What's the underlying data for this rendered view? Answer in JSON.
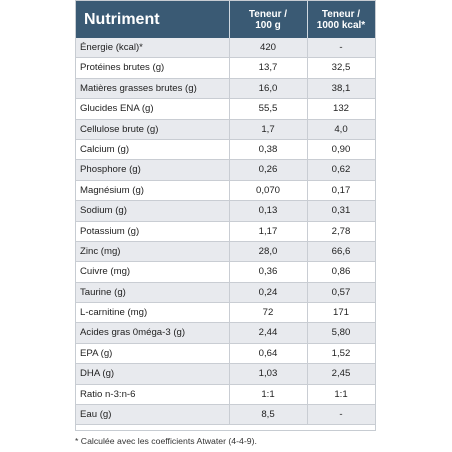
{
  "table": {
    "header": {
      "nutrient_label": "Nutriment",
      "per_100g_label": "Teneur /\n100 g",
      "per_1000kcal_label": "Teneur /\n1000 kcal*"
    },
    "rows": [
      {
        "name": "Énergie (kcal)*",
        "per_100g": "420",
        "per_1000kcal": "-"
      },
      {
        "name": "Protéines brutes (g)",
        "per_100g": "13,7",
        "per_1000kcal": "32,5"
      },
      {
        "name": "Matières grasses brutes (g)",
        "per_100g": "16,0",
        "per_1000kcal": "38,1"
      },
      {
        "name": "Glucides ENA (g)",
        "per_100g": "55,5",
        "per_1000kcal": "132"
      },
      {
        "name": "Cellulose brute (g)",
        "per_100g": "1,7",
        "per_1000kcal": "4,0"
      },
      {
        "name": "Calcium (g)",
        "per_100g": "0,38",
        "per_1000kcal": "0,90"
      },
      {
        "name": "Phosphore (g)",
        "per_100g": "0,26",
        "per_1000kcal": "0,62"
      },
      {
        "name": "Magnésium (g)",
        "per_100g": "0,070",
        "per_1000kcal": "0,17"
      },
      {
        "name": "Sodium (g)",
        "per_100g": "0,13",
        "per_1000kcal": "0,31"
      },
      {
        "name": "Potassium (g)",
        "per_100g": "1,17",
        "per_1000kcal": "2,78"
      },
      {
        "name": "Zinc (mg)",
        "per_100g": "28,0",
        "per_1000kcal": "66,6"
      },
      {
        "name": "Cuivre (mg)",
        "per_100g": "0,36",
        "per_1000kcal": "0,86"
      },
      {
        "name": "Taurine (g)",
        "per_100g": "0,24",
        "per_1000kcal": "0,57"
      },
      {
        "name": "L-carnitine (mg)",
        "per_100g": "72",
        "per_1000kcal": "171"
      },
      {
        "name": "Acides gras 0méga-3 (g)",
        "per_100g": "2,44",
        "per_1000kcal": "5,80"
      },
      {
        "name": "EPA (g)",
        "per_100g": "0,64",
        "per_1000kcal": "1,52"
      },
      {
        "name": "DHA (g)",
        "per_100g": "1,03",
        "per_1000kcal": "2,45"
      },
      {
        "name": "Ratio n-3:n-6",
        "per_100g": "1:1",
        "per_1000kcal": "1:1"
      },
      {
        "name": "Eau (g)",
        "per_100g": "8,5",
        "per_1000kcal": "-"
      }
    ],
    "footnote": "* Calculée avec les coefficients Atwater (4-4-9)."
  },
  "colors": {
    "header_bg": "#3a5a74",
    "row_shaded": "#e8eaee",
    "row_plain": "#ffffff",
    "border": "#c9cdd3"
  }
}
